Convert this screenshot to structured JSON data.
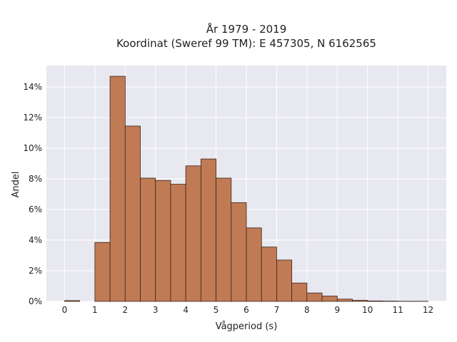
{
  "chart_data": {
    "type": "bar",
    "title": "År 1979 - 2019",
    "subtitle": "Koordinat (Sweref 99 TM): E 457305, N 6162565",
    "xlabel": "Vågperiod (s)",
    "ylabel": "Andel",
    "x_ticks": [
      "0",
      "1",
      "2",
      "3",
      "4",
      "5",
      "6",
      "7",
      "8",
      "9",
      "10",
      "11",
      "12"
    ],
    "y_ticks": [
      "0%",
      "2%",
      "4%",
      "6%",
      "8%",
      "10%",
      "12%",
      "14%"
    ],
    "xlim": [
      -0.6,
      12.6
    ],
    "ylim": [
      0,
      15.4
    ],
    "grid": true,
    "bin_width": 0.5,
    "bins": [
      {
        "x_start": 0.0,
        "x_end": 0.5,
        "value": 0.05
      },
      {
        "x_start": 1.0,
        "x_end": 1.5,
        "value": 3.85
      },
      {
        "x_start": 1.5,
        "x_end": 2.0,
        "value": 14.7
      },
      {
        "x_start": 2.0,
        "x_end": 2.5,
        "value": 11.45
      },
      {
        "x_start": 2.5,
        "x_end": 3.0,
        "value": 8.05
      },
      {
        "x_start": 3.0,
        "x_end": 3.5,
        "value": 7.9
      },
      {
        "x_start": 3.5,
        "x_end": 4.0,
        "value": 7.65
      },
      {
        "x_start": 4.0,
        "x_end": 4.5,
        "value": 8.85
      },
      {
        "x_start": 4.5,
        "x_end": 5.0,
        "value": 9.3
      },
      {
        "x_start": 5.0,
        "x_end": 5.5,
        "value": 8.05
      },
      {
        "x_start": 5.5,
        "x_end": 6.0,
        "value": 6.45
      },
      {
        "x_start": 6.0,
        "x_end": 6.5,
        "value": 4.8
      },
      {
        "x_start": 6.5,
        "x_end": 7.0,
        "value": 3.55
      },
      {
        "x_start": 7.0,
        "x_end": 7.5,
        "value": 2.7
      },
      {
        "x_start": 7.5,
        "x_end": 8.0,
        "value": 1.2
      },
      {
        "x_start": 8.0,
        "x_end": 8.5,
        "value": 0.55
      },
      {
        "x_start": 8.5,
        "x_end": 9.0,
        "value": 0.35
      },
      {
        "x_start": 9.0,
        "x_end": 9.5,
        "value": 0.15
      },
      {
        "x_start": 9.5,
        "x_end": 10.0,
        "value": 0.07
      },
      {
        "x_start": 10.0,
        "x_end": 10.5,
        "value": 0.03
      },
      {
        "x_start": 10.5,
        "x_end": 11.0,
        "value": 0.02
      },
      {
        "x_start": 11.0,
        "x_end": 11.5,
        "value": 0.01
      },
      {
        "x_start": 11.5,
        "x_end": 12.0,
        "value": 0.01
      }
    ],
    "colors": {
      "bar_fill": "#c07b55",
      "bar_edge": "#3a2418",
      "plot_background": "#e8e8f0",
      "grid": "#ffffff"
    }
  }
}
